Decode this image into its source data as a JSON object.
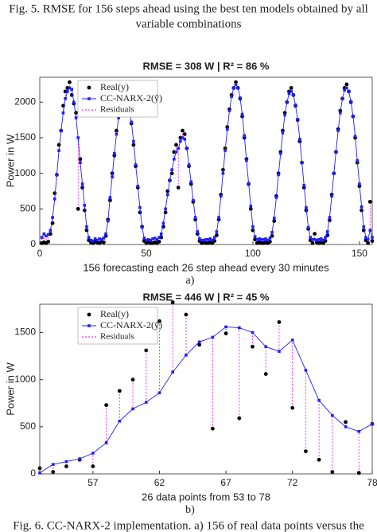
{
  "fig5_caption": [
    "Fig. 5. RMSE for 156 steps ahead using the best ten models obtained by all",
    "variable combinations"
  ],
  "fig6_caption": "Fig. 6. CC-NARX-2 implementation. a) 156 of real data points versus the",
  "chart_data": [
    {
      "type": "line",
      "title": "RMSE = 308 W | R² = 86 %",
      "panel_label": "a)",
      "xlabel": "156 forecasting each 26 step ahead every 30 minutes",
      "ylabel": "Power in W",
      "xlim": [
        0,
        156
      ],
      "xticks": [
        0,
        50,
        100,
        150
      ],
      "ylim": [
        0,
        2350
      ],
      "yticks": [
        0,
        500,
        1000,
        1500,
        2000
      ],
      "legend": "upper left",
      "residuals": {
        "name": "Residuals",
        "color": "#ff00ff"
      },
      "x": [
        1,
        2,
        3,
        4,
        5,
        6,
        7,
        8,
        9,
        10,
        11,
        12,
        13,
        14,
        15,
        16,
        17,
        18,
        19,
        20,
        21,
        22,
        23,
        24,
        25,
        26,
        27,
        28,
        29,
        30,
        31,
        32,
        33,
        34,
        35,
        36,
        37,
        38,
        39,
        40,
        41,
        42,
        43,
        44,
        45,
        46,
        47,
        48,
        49,
        50,
        51,
        52,
        53,
        54,
        55,
        56,
        57,
        58,
        59,
        60,
        61,
        62,
        63,
        64,
        65,
        66,
        67,
        68,
        69,
        70,
        71,
        72,
        73,
        74,
        75,
        76,
        77,
        78,
        79,
        80,
        81,
        82,
        83,
        84,
        85,
        86,
        87,
        88,
        89,
        90,
        91,
        92,
        93,
        94,
        95,
        96,
        97,
        98,
        99,
        100,
        101,
        102,
        103,
        104,
        105,
        106,
        107,
        108,
        109,
        110,
        111,
        112,
        113,
        114,
        115,
        116,
        117,
        118,
        119,
        120,
        121,
        122,
        123,
        124,
        125,
        126,
        127,
        128,
        129,
        130,
        131,
        132,
        133,
        134,
        135,
        136,
        137,
        138,
        139,
        140,
        141,
        142,
        143,
        144,
        145,
        146,
        147,
        148,
        149,
        150,
        151,
        152,
        153,
        154,
        155,
        156
      ],
      "series": [
        {
          "name": "Real(y)",
          "color": "#000000",
          "marker": "circle",
          "line": false,
          "values": [
            20,
            30,
            20,
            40,
            150,
            300,
            720,
            980,
            1400,
            1600,
            1950,
            2150,
            2200,
            2280,
            2100,
            1980,
            1850,
            500,
            1200,
            800,
            480,
            200,
            60,
            30,
            20,
            40,
            30,
            20,
            40,
            30,
            120,
            350,
            620,
            1000,
            1250,
            1600,
            1800,
            2000,
            2100,
            2150,
            2050,
            1950,
            1700,
            1400,
            1100,
            800,
            450,
            250,
            50,
            20,
            30,
            20,
            20,
            30,
            20,
            40,
            100,
            250,
            450,
            750,
            900,
            1000,
            1300,
            1400,
            800,
            1500,
            1600,
            1550,
            1350,
            1100,
            850,
            600,
            350,
            150,
            50,
            20,
            30,
            20,
            20,
            30,
            20,
            50,
            130,
            350,
            700,
            1050,
            1350,
            1650,
            1900,
            2100,
            2200,
            2280,
            2200,
            2050,
            1800,
            1500,
            1200,
            850,
            500,
            200,
            70,
            20,
            30,
            20,
            20,
            30,
            20,
            40,
            120,
            330,
            680,
            1000,
            1300,
            1600,
            1850,
            2000,
            2150,
            2200,
            2100,
            1950,
            1750,
            1450,
            1150,
            800,
            480,
            220,
            60,
            20,
            150,
            30,
            20,
            30,
            20,
            50,
            130,
            340,
            700,
            1000,
            1300,
            1620,
            1880,
            2050,
            2200,
            2250,
            2150,
            2000,
            1800,
            1500,
            1150,
            820,
            480,
            200,
            60,
            20,
            600,
            50
          ]
        },
        {
          "name": "CC-NARX-2(ŷ)",
          "color": "#1f1fff",
          "marker": "square",
          "line": true,
          "values": [
            100,
            150,
            120,
            140,
            200,
            380,
            640,
            980,
            1320,
            1600,
            1850,
            2050,
            2150,
            2200,
            2180,
            2000,
            1780,
            1500,
            1150,
            850,
            550,
            250,
            100,
            60,
            50,
            80,
            60,
            80,
            70,
            90,
            150,
            330,
            660,
            950,
            1280,
            1550,
            1780,
            1950,
            2050,
            2100,
            2060,
            1900,
            1720,
            1450,
            1120,
            820,
            520,
            240,
            90,
            60,
            70,
            60,
            80,
            90,
            70,
            100,
            150,
            300,
            500,
            700,
            900,
            1050,
            1200,
            1300,
            1350,
            1450,
            1500,
            1480,
            1350,
            1120,
            880,
            620,
            380,
            180,
            80,
            60,
            60,
            70,
            70,
            80,
            60,
            100,
            180,
            380,
            680,
            1000,
            1320,
            1620,
            1880,
            2080,
            2200,
            2250,
            2200,
            2060,
            1830,
            1530,
            1180,
            860,
            540,
            250,
            110,
            70,
            80,
            70,
            70,
            80,
            60,
            90,
            170,
            370,
            660,
            980,
            1280,
            1570,
            1820,
            2000,
            2120,
            2150,
            2100,
            1960,
            1760,
            1480,
            1150,
            830,
            520,
            240,
            100,
            70,
            70,
            60,
            70,
            80,
            60,
            100,
            180,
            380,
            680,
            1000,
            1300,
            1600,
            1850,
            2050,
            2170,
            2200,
            2150,
            2010,
            1800,
            1520,
            1180,
            850,
            530,
            250,
            100,
            70,
            200,
            100
          ]
        }
      ]
    },
    {
      "type": "line",
      "title": "RMSE = 446 W | R² = 45 %",
      "panel_label": "b)",
      "xlabel": "26 data points from 53 to 78",
      "ylabel": "Power in W",
      "xlim": [
        53,
        78
      ],
      "xticks": [
        57,
        62,
        67,
        72,
        78
      ],
      "ylim": [
        0,
        1800
      ],
      "yticks": [
        0,
        500,
        1000,
        1500
      ],
      "legend": "upper left",
      "residuals": {
        "name": "Residuals",
        "color": "#ff00ff"
      },
      "x": [
        53,
        54,
        55,
        56,
        57,
        58,
        59,
        60,
        61,
        62,
        63,
        64,
        65,
        66,
        67,
        68,
        69,
        70,
        71,
        72,
        73,
        74,
        75,
        76,
        77,
        78
      ],
      "series": [
        {
          "name": "Real(y)",
          "color": "#000000",
          "marker": "circle",
          "line": false,
          "values": [
            60,
            20,
            80,
            150,
            80,
            730,
            880,
            1000,
            1310,
            1620,
            1820,
            1690,
            1370,
            480,
            1490,
            590,
            1350,
            1060,
            1610,
            700,
            240,
            150,
            20,
            550,
            10,
            530
          ]
        },
        {
          "name": "CC-NARX-2(ŷ)",
          "color": "#1f1fff",
          "marker": "square",
          "line": true,
          "values": [
            10,
            100,
            130,
            160,
            220,
            330,
            560,
            690,
            760,
            860,
            1080,
            1260,
            1400,
            1450,
            1560,
            1550,
            1500,
            1350,
            1300,
            1420,
            1100,
            780,
            620,
            500,
            450,
            530
          ]
        }
      ]
    }
  ]
}
